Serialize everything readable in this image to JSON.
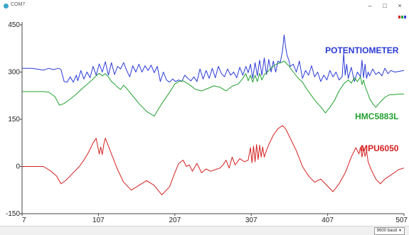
{
  "window": {
    "title": "COM7",
    "minimize_glyph": "–",
    "maximize_glyph": "□",
    "close_glyph": "×",
    "app_icon": "serial-plotter-icon"
  },
  "legend_icon": {
    "name": "series-colors-icon",
    "colors": [
      "#d42020",
      "#22a030",
      "#2a3ad6"
    ]
  },
  "bottom_bar": {
    "baud_value": "9600 baud",
    "dropdown_icon": "chevron-down-icon"
  },
  "chart_data": {
    "type": "line",
    "title": "",
    "xlabel": "",
    "ylabel": "",
    "xlim": [
      7,
      507
    ],
    "ylim": [
      -150,
      450
    ],
    "xticks": [
      7,
      107,
      207,
      307,
      407,
      507
    ],
    "xtick_labels": [
      "7",
      "107",
      "207",
      "307",
      "407",
      "507"
    ],
    "yticks": [
      -150,
      0,
      150,
      300,
      450
    ],
    "ytick_labels": [
      "-150",
      "0",
      "150",
      "300",
      "450"
    ],
    "grid": false,
    "legend": "none",
    "series": [
      {
        "name": "POTENTIOMETER",
        "color": "#2a3ad6",
        "x": [
          7,
          20,
          35,
          42,
          48,
          55,
          58,
          62,
          66,
          70,
          74,
          78,
          80,
          84,
          88,
          92,
          96,
          100,
          104,
          108,
          112,
          116,
          120,
          124,
          128,
          132,
          136,
          140,
          144,
          148,
          152,
          156,
          160,
          164,
          168,
          172,
          176,
          180,
          184,
          188,
          192,
          196,
          200,
          204,
          208,
          212,
          216,
          220,
          224,
          228,
          232,
          236,
          240,
          244,
          248,
          252,
          256,
          260,
          264,
          268,
          272,
          276,
          280,
          284,
          288,
          292,
          296,
          300,
          303,
          306,
          309,
          312,
          315,
          318,
          321,
          324,
          327,
          330,
          333,
          336,
          339,
          342,
          345,
          348,
          350,
          352,
          354,
          356,
          358,
          362,
          366,
          370,
          374,
          378,
          382,
          386,
          390,
          394,
          398,
          402,
          406,
          410,
          414,
          418,
          422,
          426,
          428,
          430,
          432,
          434,
          438,
          442,
          446,
          450,
          452,
          454,
          456,
          458,
          460,
          462,
          466,
          470,
          474,
          478,
          482,
          486,
          490,
          495,
          500,
          507
        ],
        "y": [
          312,
          312,
          306,
          312,
          308,
          312,
          308,
          270,
          268,
          285,
          268,
          290,
          272,
          305,
          278,
          300,
          282,
          318,
          290,
          326,
          300,
          333,
          290,
          330,
          292,
          318,
          310,
          330,
          305,
          285,
          320,
          300,
          325,
          300,
          320,
          305,
          322,
          298,
          318,
          270,
          300,
          275,
          268,
          278,
          270,
          275,
          270,
          290,
          280,
          272,
          285,
          270,
          310,
          278,
          305,
          280,
          312,
          282,
          318,
          295,
          285,
          310,
          290,
          300,
          282,
          315,
          290,
          318,
          298,
          325,
          280,
          330,
          288,
          338,
          290,
          345,
          292,
          340,
          300,
          335,
          300,
          335,
          330,
          368,
          418,
          380,
          352,
          340,
          318,
          325,
          300,
          335,
          280,
          305,
          290,
          320,
          285,
          300,
          270,
          290,
          275,
          305,
          285,
          300,
          275,
          285,
          360,
          290,
          325,
          280,
          315,
          270,
          300,
          285,
          338,
          282,
          325,
          280,
          300,
          288,
          310,
          292,
          300,
          288,
          312,
          295,
          305,
          300,
          302,
          305
        ]
      },
      {
        "name": "HMC5883L",
        "color": "#22a030",
        "x": [
          7,
          20,
          35,
          42,
          50,
          56,
          62,
          70,
          78,
          86,
          94,
          100,
          104,
          108,
          112,
          116,
          120,
          124,
          128,
          132,
          136,
          140,
          144,
          150,
          160,
          170,
          180,
          190,
          200,
          207,
          212,
          218,
          226,
          234,
          242,
          250,
          258,
          266,
          274,
          282,
          290,
          296,
          300,
          303,
          306,
          309,
          312,
          315,
          318,
          321,
          324,
          328,
          334,
          340,
          346,
          350,
          356,
          362,
          368,
          374,
          380,
          386,
          392,
          398,
          404,
          410,
          416,
          422,
          428,
          434,
          438,
          442,
          446,
          450,
          452,
          454,
          456,
          458,
          460,
          462,
          466,
          470,
          476,
          482,
          488,
          494,
          500,
          507
        ],
        "y": [
          238,
          238,
          238,
          236,
          222,
          195,
          200,
          214,
          230,
          248,
          265,
          278,
          288,
          296,
          288,
          295,
          285,
          270,
          262,
          252,
          245,
          258,
          248,
          230,
          200,
          175,
          160,
          200,
          235,
          262,
          270,
          272,
          260,
          245,
          240,
          248,
          256,
          252,
          240,
          255,
          262,
          280,
          295,
          272,
          290,
          268,
          290,
          270,
          296,
          275,
          292,
          300,
          315,
          325,
          330,
          335,
          320,
          300,
          282,
          268,
          245,
          225,
          205,
          190,
          170,
          188,
          210,
          240,
          262,
          275,
          265,
          282,
          270,
          285,
          260,
          275,
          255,
          242,
          230,
          215,
          200,
          188,
          205,
          220,
          228,
          228,
          230,
          230
        ]
      },
      {
        "name": "MPU6050",
        "color": "#d42020",
        "x": [
          7,
          20,
          35,
          45,
          52,
          58,
          64,
          70,
          76,
          82,
          88,
          94,
          100,
          104,
          108,
          110,
          112,
          114,
          116,
          120,
          124,
          128,
          132,
          140,
          150,
          160,
          170,
          180,
          190,
          200,
          207,
          212,
          218,
          222,
          226,
          230,
          236,
          242,
          248,
          254,
          260,
          266,
          270,
          274,
          278,
          282,
          286,
          292,
          298,
          303,
          306,
          308,
          310,
          312,
          314,
          316,
          318,
          320,
          322,
          324,
          326,
          330,
          336,
          342,
          348,
          352,
          358,
          366,
          374,
          382,
          390,
          398,
          406,
          414,
          422,
          430,
          438,
          444,
          448,
          450,
          452,
          454,
          456,
          458,
          460,
          464,
          470,
          476,
          482,
          488,
          494,
          500,
          507
        ],
        "y": [
          0,
          0,
          0,
          -15,
          -30,
          -55,
          -45,
          -30,
          -15,
          0,
          20,
          45,
          75,
          90,
          40,
          62,
          38,
          70,
          90,
          65,
          40,
          15,
          -10,
          -50,
          -75,
          -60,
          -45,
          -60,
          -90,
          -65,
          -20,
          10,
          20,
          0,
          5,
          -15,
          10,
          -20,
          -8,
          -15,
          -10,
          -5,
          5,
          20,
          -5,
          30,
          5,
          25,
          15,
          20,
          60,
          12,
          65,
          15,
          70,
          22,
          68,
          30,
          62,
          30,
          45,
          70,
          100,
          120,
          130,
          120,
          90,
          50,
          0,
          -30,
          -50,
          -40,
          -60,
          -80,
          -55,
          -20,
          30,
          60,
          40,
          62,
          30,
          58,
          32,
          50,
          15,
          -10,
          -40,
          -55,
          -40,
          -30,
          -20,
          -10,
          -5
        ]
      }
    ],
    "annotations": [
      {
        "text": "POTENTIOMETER",
        "color": "#2a3ad6",
        "x": 500,
        "y": 360
      },
      {
        "text": "HMC5883L",
        "color": "#22a030",
        "x": 500,
        "y": 150
      },
      {
        "text": "MPU6050",
        "color": "#d42020",
        "x": 500,
        "y": 48
      }
    ]
  }
}
